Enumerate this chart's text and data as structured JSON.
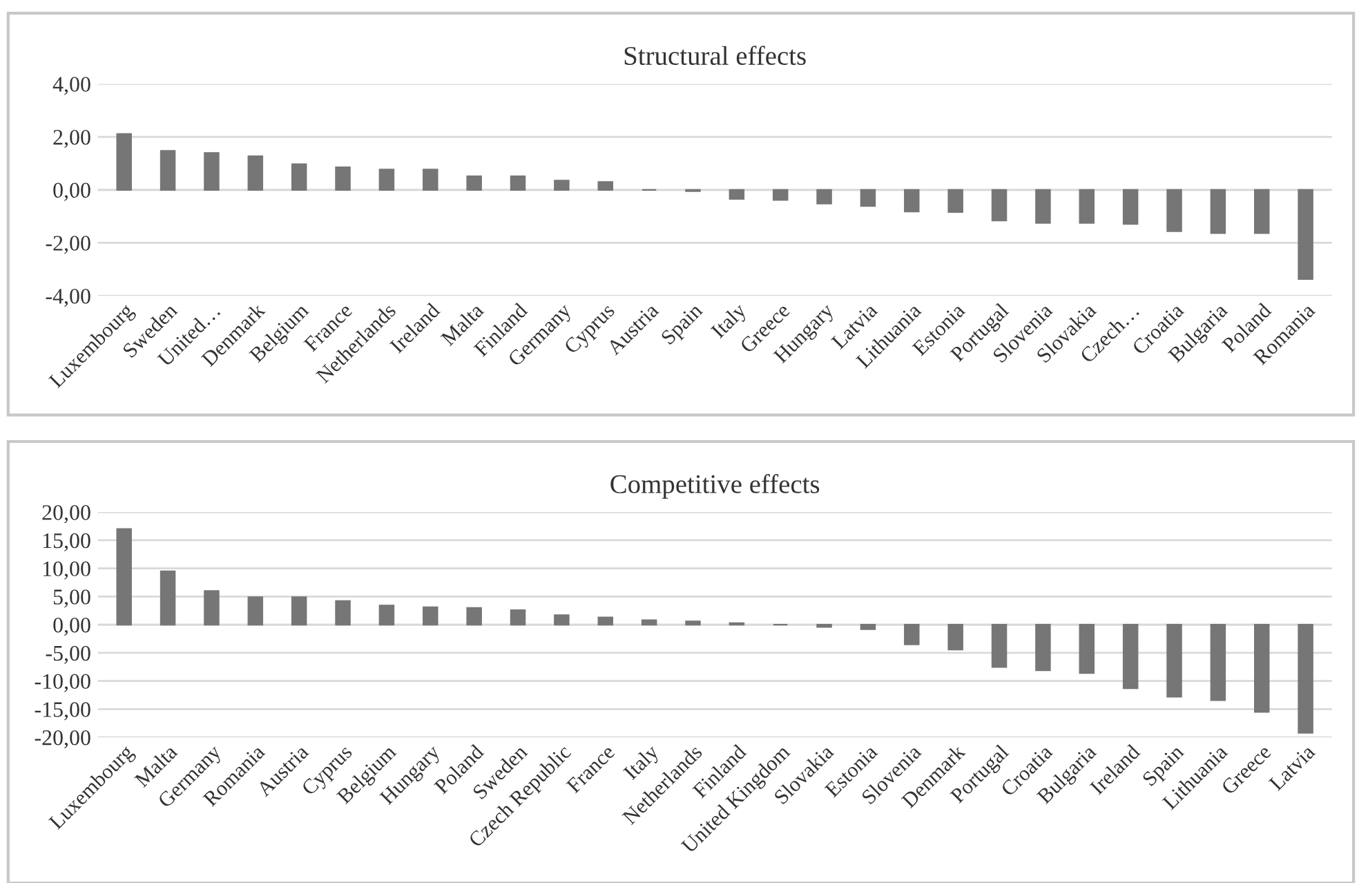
{
  "chart_data": [
    {
      "type": "bar",
      "title": "Structural effects",
      "categories": [
        "Luxembourg",
        "Sweden",
        "United…",
        "Denmark",
        "Belgium",
        "France",
        "Netherlands",
        "Ireland",
        "Malta",
        "Finland",
        "Germany",
        "Cyprus",
        "Austria",
        "Spain",
        "Italy",
        "Greece",
        "Hungary",
        "Latvia",
        "Lithuania",
        "Estonia",
        "Portugal",
        "Slovenia",
        "Slovakia",
        "Czech…",
        "Croatia",
        "Bulgaria",
        "Poland",
        "Romania"
      ],
      "values": [
        2.11,
        1.47,
        1.39,
        1.27,
        0.97,
        0.85,
        0.77,
        0.77,
        0.51,
        0.51,
        0.35,
        0.3,
        0,
        -0.05,
        -0.34,
        -0.38,
        -0.52,
        -0.61,
        -0.82,
        -0.84,
        -1.16,
        -1.25,
        -1.25,
        -1.29,
        -1.56,
        -1.63,
        -1.63,
        -3.37
      ],
      "color": "#767676",
      "ylim": [
        -4,
        4
      ],
      "yticks": [
        {
          "value": -4,
          "label": "-4,00"
        },
        {
          "value": -2,
          "label": "-2,00"
        },
        {
          "value": 0,
          "label": "0,00"
        },
        {
          "value": 2,
          "label": "2,00"
        },
        {
          "value": 4,
          "label": "4,00"
        }
      ],
      "grid": "y",
      "legend": false
    },
    {
      "type": "bar",
      "title": "Competitive effects",
      "categories": [
        "Luxembourg",
        "Malta",
        "Germany",
        "Romania",
        "Austria",
        "Cyprus",
        "Belgium",
        "Hungary",
        "Poland",
        "Sweden",
        "Czech Republic",
        "France",
        "Italy",
        "Netherlands",
        "Finland",
        "United Kingdom",
        "Slovakia",
        "Estonia",
        "Slovenia",
        "Denmark",
        "Portugal",
        "Croatia",
        "Bulgaria",
        "Ireland",
        "Spain",
        "Lithuania",
        "Greece",
        "Latvia"
      ],
      "values": [
        17.0,
        9.5,
        6.0,
        4.9,
        4.9,
        4.2,
        3.4,
        3.1,
        3.0,
        2.6,
        1.7,
        1.3,
        0.8,
        0.6,
        0.3,
        0,
        -0.4,
        -0.8,
        -3.5,
        -4.4,
        -7.5,
        -8.1,
        -8.6,
        -11.3,
        -12.8,
        -13.4,
        -15.5,
        -19.2
      ],
      "color": "#767676",
      "ylim": [
        -20,
        20
      ],
      "yticks": [
        {
          "value": -20,
          "label": "-20,00"
        },
        {
          "value": -15,
          "label": "-15,00"
        },
        {
          "value": -10,
          "label": "-10,00"
        },
        {
          "value": -5,
          "label": "-5,00"
        },
        {
          "value": 0,
          "label": "0,00"
        },
        {
          "value": 5,
          "label": "5,00"
        },
        {
          "value": 10,
          "label": "10,00"
        },
        {
          "value": 15,
          "label": "15,00"
        },
        {
          "value": 20,
          "label": "20,00"
        }
      ],
      "grid": "y",
      "legend": false
    }
  ]
}
